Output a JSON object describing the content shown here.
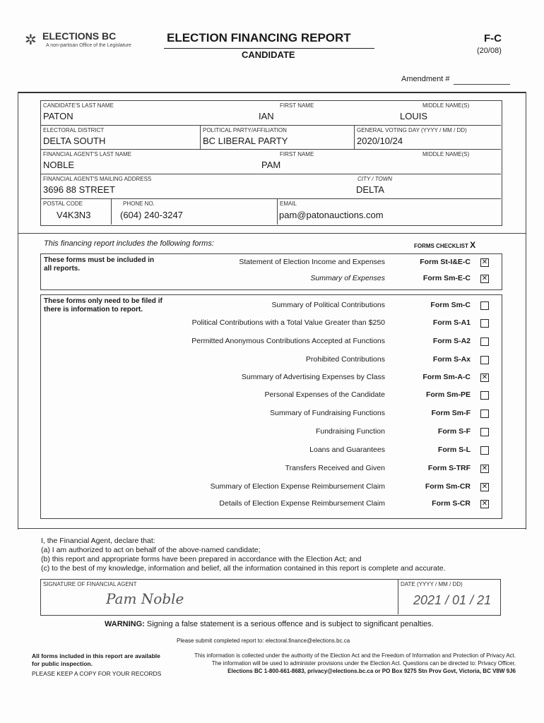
{
  "header": {
    "logo_text": "ELECTIONS BC",
    "logo_tagline": "A non-partisan Office of the Legislature",
    "title": "ELECTION FINANCING REPORT",
    "subtitle": "CANDIDATE",
    "form_code": "F-C",
    "form_version": "(20/08)",
    "amendment_label": "Amendment #"
  },
  "fields": {
    "cand_last_label": "CANDIDATE'S LAST NAME",
    "cand_last": "PATON",
    "cand_first_label": "FIRST NAME",
    "cand_first": "IAN",
    "cand_middle_label": "MIDDLE NAME(S)",
    "cand_middle": "LOUIS",
    "district_label": "ELECTORAL DISTRICT",
    "district": "DELTA SOUTH",
    "party_label": "POLITICAL PARTY/AFFILIATION",
    "party": "BC LIBERAL PARTY",
    "voting_day_label": "GENERAL VOTING DAY (YYYY / MM / DD)",
    "voting_day": "2020/10/24",
    "agent_last_label": "FINANCIAL AGENT'S LAST NAME",
    "agent_last": "NOBLE",
    "agent_first_label": "FIRST NAME",
    "agent_first": "PAM",
    "agent_middle_label": "MIDDLE NAME(S)",
    "address_label": "FINANCIAL AGENT'S MAILING ADDRESS",
    "address": "3696 88 STREET",
    "city_label": "CITY / TOWN",
    "city": "DELTA",
    "postal_label": "POSTAL CODE",
    "postal": "V4K3N3",
    "phone_label": "PHONE NO.",
    "phone": "(604) 240-3247",
    "email_label": "EMAIL",
    "email": "pam@patonauctions.com"
  },
  "checklist": {
    "intro": "This financing report includes the following forms:",
    "checklist_label": "FORMS CHECKLIST",
    "checklist_mark": "X",
    "group1_note": "These forms must be included in all reports.",
    "group2_note": "These forms only need to be filed if there is information to report.",
    "group1": [
      {
        "desc": "Statement of Election Income and Expenses",
        "form": "Form St-I&E-C",
        "checked": true
      },
      {
        "desc": "Summary of Expenses",
        "form": "Form Sm-E-C",
        "checked": true
      }
    ],
    "group2": [
      {
        "desc": "Summary of Political Contributions",
        "form": "Form Sm-C",
        "checked": false
      },
      {
        "desc": "Political Contributions with a Total Value Greater than $250",
        "form": "Form S-A1",
        "checked": false
      },
      {
        "desc": "Permitted Anonymous Contributions Accepted at Functions",
        "form": "Form S-A2",
        "checked": false
      },
      {
        "desc": "Prohibited Contributions",
        "form": "Form S-Ax",
        "checked": false
      },
      {
        "desc": "Summary of Advertising Expenses by Class",
        "form": "Form Sm-A-C",
        "checked": true
      },
      {
        "desc": "Personal Expenses of the Candidate",
        "form": "Form Sm-PE",
        "checked": false
      },
      {
        "desc": "Summary of Fundraising Functions",
        "form": "Form Sm-F",
        "checked": false
      },
      {
        "desc": "Fundraising Function",
        "form": "Form S-F",
        "checked": false
      },
      {
        "desc": "Loans and Guarantees",
        "form": "Form S-L",
        "checked": false
      },
      {
        "desc": "Transfers Received and Given",
        "form": "Form S-TRF",
        "checked": true
      },
      {
        "desc": "Summary of Election Expense Reimbursement Claim",
        "form": "Form Sm-CR",
        "checked": true
      },
      {
        "desc": "Details of Election Expense Reimbursement Claim",
        "form": "Form S-CR",
        "checked": true
      }
    ]
  },
  "declaration": {
    "line0": "I, the Financial Agent, declare that:",
    "line1": "(a) I am authorized to act on behalf of the above-named candidate;",
    "line2": "(b) this report and appropriate forms have been prepared in accordance with the Election Act; and",
    "line3": "(c) to the best of my knowledge, information and belief, all the information contained in this report is complete and accurate.",
    "signature_label": "SIGNATURE OF FINANCIAL AGENT",
    "signature": "Pam Noble",
    "date_label": "DATE (YYYY / MM / DD)",
    "date": "2021 / 01 / 21"
  },
  "footer": {
    "warning_label": "WARNING:",
    "warning": "Signing a false statement is a serious offence and is subject to significant penalties.",
    "submit": "Please submit completed report to: electoral.finance@elections.bc.ca",
    "public1": "All forms included in this report are available for public inspection.",
    "keep_copy": "PLEASE KEEP A COPY FOR YOUR RECORDS",
    "privacy1": "This information is collected under the authority of the Election Act and the Freedom of Information and Protection of Privacy Act.",
    "privacy2": "The information will be used to administer provisions under the Election Act. Questions can be directed to: Privacy Officer,",
    "privacy3": "Elections BC 1-800-661-8683, privacy@elections.bc.ca or PO Box 9275 Stn Prov Govt, Victoria, BC V8W 9J6"
  }
}
